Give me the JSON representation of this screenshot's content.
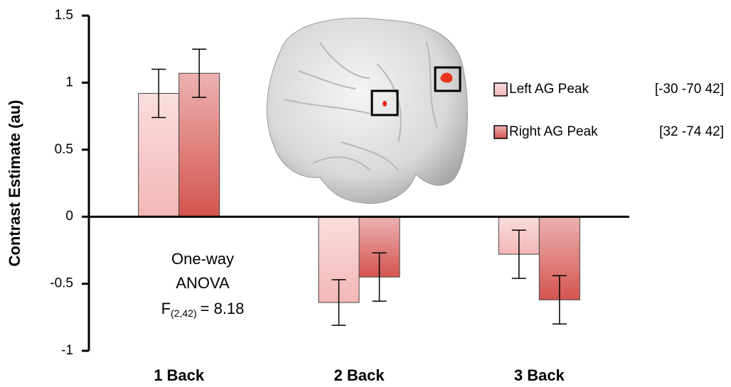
{
  "chart_data": {
    "type": "bar",
    "y_label": "Contrast Estimate (au)",
    "categories": [
      "1 Back",
      "2 Back",
      "3 Back"
    ],
    "series": [
      {
        "name": "Left AG Peak",
        "coordinates": "[-30 -70 42]",
        "color": "#f4b6b6",
        "values": [
          0.92,
          -0.64,
          -0.28
        ],
        "errors": [
          0.18,
          0.17,
          0.18
        ]
      },
      {
        "name": "Right AG Peak",
        "coordinates": "[32 -74 42]",
        "color": "#d4544f",
        "values": [
          1.07,
          -0.45,
          -0.62
        ],
        "errors": [
          0.18,
          0.18,
          0.18
        ]
      }
    ],
    "ylim": [
      -1,
      1.5
    ],
    "yticks": [
      -1,
      -0.5,
      0,
      0.5,
      1,
      1.5
    ],
    "annotation": {
      "lines": [
        "One-way",
        "ANOVA"
      ],
      "stat": "F",
      "subscript": "(2,42)",
      "value_text": "= 8.18"
    }
  }
}
